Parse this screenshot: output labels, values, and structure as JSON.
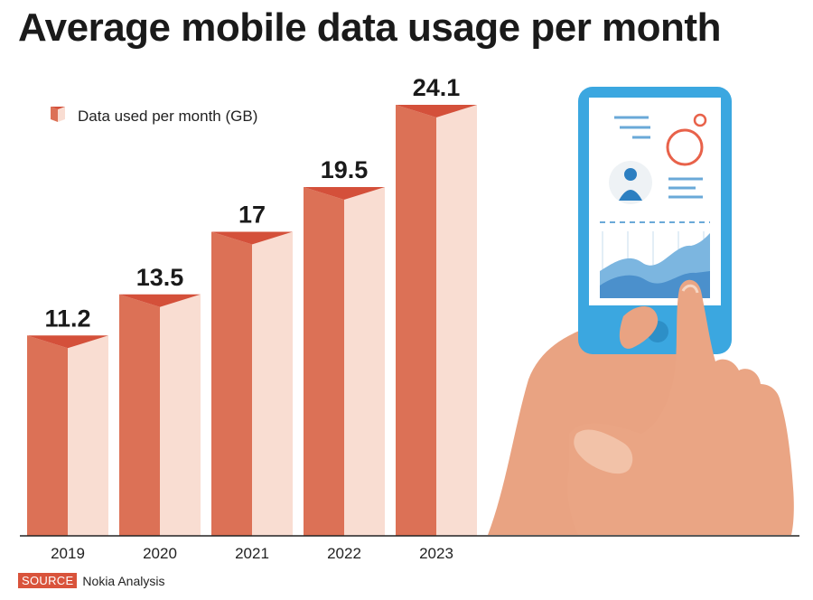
{
  "title": "Average mobile data usage per month",
  "source": {
    "label": "SOURCE",
    "text": "Nokia Analysis"
  },
  "colors": {
    "bar_dark": "#dc7156",
    "bar_light": "#f9ddd2",
    "bar_top": "#d4503a",
    "axis": "#222222",
    "source_badge": "#d9533b"
  },
  "chart_data": {
    "type": "bar",
    "categories": [
      "2019",
      "2020",
      "2021",
      "2022",
      "2023"
    ],
    "series": [
      {
        "name": "Data used per month (GB)",
        "values": [
          11.2,
          13.5,
          17,
          19.5,
          24.1
        ]
      }
    ],
    "value_labels": [
      "11.2",
      "13.5",
      "17",
      "19.5",
      "24.1"
    ],
    "title": "Average mobile data usage per month",
    "xlabel": "",
    "ylabel": "",
    "ylim": [
      0,
      27
    ],
    "grid": false,
    "legend": "top-left"
  },
  "illustration": {
    "icon": "hand-holding-smartphone-icon"
  }
}
